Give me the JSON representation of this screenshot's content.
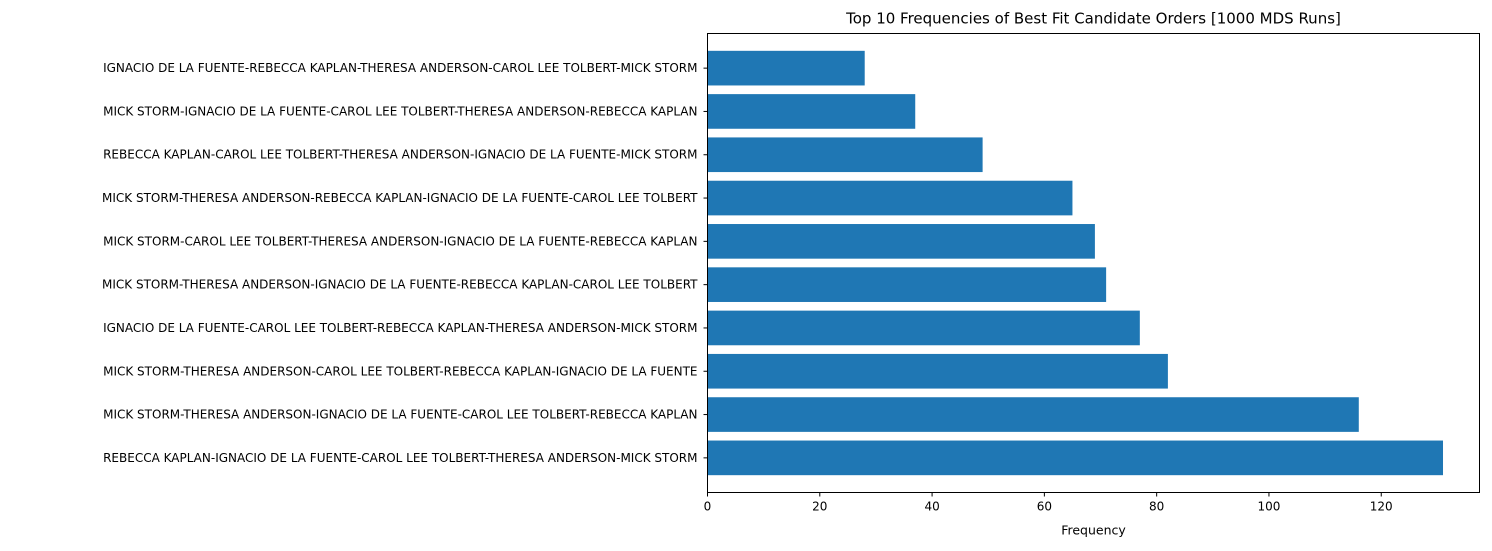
{
  "chart_data": {
    "type": "bar",
    "orientation": "horizontal",
    "title": "Top 10 Frequencies of Best Fit Candidate Orders [1000 MDS Runs]",
    "xlabel": "Frequency",
    "ylabel": "",
    "xlim": [
      0,
      137.5
    ],
    "xticks": [
      0,
      20,
      40,
      60,
      80,
      100,
      120
    ],
    "grid": false,
    "bar_color": "#1f77b4",
    "categories": [
      "IGNACIO DE LA FUENTE-REBECCA KAPLAN-THERESA ANDERSON-CAROL LEE TOLBERT-MICK STORM",
      "MICK STORM-IGNACIO DE LA FUENTE-CAROL LEE TOLBERT-THERESA ANDERSON-REBECCA KAPLAN",
      "REBECCA KAPLAN-CAROL LEE TOLBERT-THERESA ANDERSON-IGNACIO DE LA FUENTE-MICK STORM",
      "MICK STORM-THERESA ANDERSON-REBECCA KAPLAN-IGNACIO DE LA FUENTE-CAROL LEE TOLBERT",
      "MICK STORM-CAROL LEE TOLBERT-THERESA ANDERSON-IGNACIO DE LA FUENTE-REBECCA KAPLAN",
      "MICK STORM-THERESA ANDERSON-IGNACIO DE LA FUENTE-REBECCA KAPLAN-CAROL LEE TOLBERT",
      "IGNACIO DE LA FUENTE-CAROL LEE TOLBERT-REBECCA KAPLAN-THERESA ANDERSON-MICK STORM",
      "MICK STORM-THERESA ANDERSON-CAROL LEE TOLBERT-REBECCA KAPLAN-IGNACIO DE LA FUENTE",
      "MICK STORM-THERESA ANDERSON-IGNACIO DE LA FUENTE-CAROL LEE TOLBERT-REBECCA KAPLAN",
      "REBECCA KAPLAN-IGNACIO DE LA FUENTE-CAROL LEE TOLBERT-THERESA ANDERSON-MICK STORM"
    ],
    "values": [
      28,
      37,
      49,
      65,
      69,
      71,
      77,
      82,
      116,
      131
    ]
  }
}
